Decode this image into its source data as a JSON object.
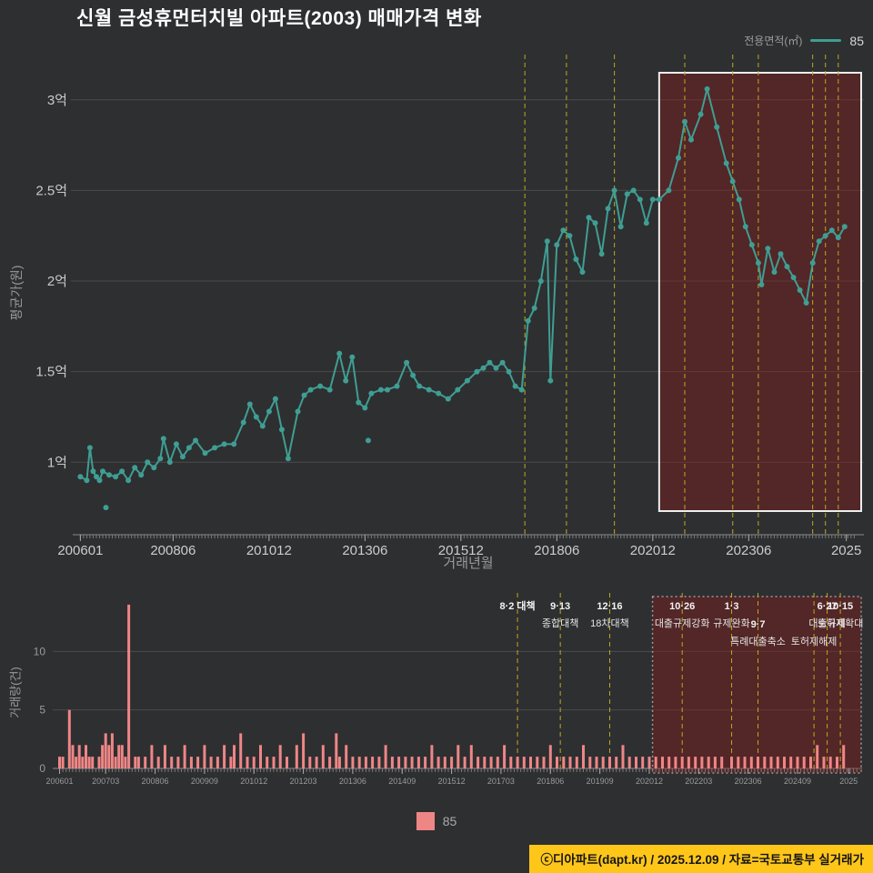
{
  "header": {
    "title": "신월 금성휴먼터치빌 아파트(2003) 매매가격 변화"
  },
  "legend_top": {
    "label": "전용면적(㎡)",
    "series": "85"
  },
  "legend_bottom": {
    "series": "85"
  },
  "footer": {
    "text": "ⓒ디아파트(dapt.kr) / 2025.12.09 / 자료=국토교통부 실거래가"
  },
  "axis_titles": {
    "top_y": "평균가(원)",
    "top_x": "거래년월",
    "bottom_y": "거래량(건)"
  },
  "colors": {
    "line": "#3f9e93",
    "bar": "#ef8686",
    "dashed": "#bfa91c",
    "grid": "#4b4b4b",
    "bg": "#2e2f31",
    "highlight_fill": "rgba(140,25,25,0.40)",
    "highlight_stroke_top": "#ededed",
    "highlight_stroke_bottom": "#9a9a9a"
  },
  "annotations": [
    {
      "date": "8·2 대책",
      "label": "",
      "ym": "201708",
      "row": 0
    },
    {
      "date": "9·13",
      "label": "종합대책",
      "ym": "201809",
      "row": 0
    },
    {
      "date": "12·16",
      "label": "18차대책",
      "ym": "201912",
      "row": 0
    },
    {
      "date": "10·26",
      "label": "대출규제강화",
      "ym": "202110",
      "row": 0
    },
    {
      "date": "1·3",
      "label": "규제완화",
      "ym": "202301",
      "row": 0
    },
    {
      "date": "9·7",
      "label": "특례대출축소",
      "ym": "202309",
      "row": 1
    },
    {
      "date": "",
      "label": "토허제해제",
      "ym": "202502",
      "row": 1
    },
    {
      "date": "6·27",
      "label": "대출규제",
      "ym": "202506",
      "row": 0
    },
    {
      "date": "10·15",
      "label": "토허제확대",
      "ym": "202510",
      "row": 0
    }
  ],
  "chart_data": [
    {
      "type": "line",
      "name": "price-trend",
      "title": "신월 금성휴먼터치빌 아파트(2003) 매매가격 변화",
      "xlabel": "거래년월",
      "ylabel": "평균가(원)",
      "ylim": [
        0.6,
        3.25
      ],
      "grid": true,
      "legend_position": "top-right",
      "yticks": [
        {
          "v": 1.0,
          "label": "1억"
        },
        {
          "v": 1.5,
          "label": "1.5억"
        },
        {
          "v": 2.0,
          "label": "2억"
        },
        {
          "v": 2.5,
          "label": "2.5억"
        },
        {
          "v": 3.0,
          "label": "3억"
        }
      ],
      "xticks": [
        "200601",
        "200806",
        "201012",
        "201306",
        "201512",
        "201806",
        "202012",
        "202306",
        "2025"
      ],
      "highlight_ym": [
        "202102",
        "202601"
      ],
      "series": [
        {
          "name": "85",
          "color": "#3f9e93",
          "unit": "억원",
          "points": [
            [
              "200601",
              0.92
            ],
            [
              "200603",
              0.9
            ],
            [
              "200604",
              1.08
            ],
            [
              "200605",
              0.95
            ],
            [
              "200606",
              0.92
            ],
            [
              "200607",
              0.9
            ],
            [
              "200608",
              0.95
            ],
            [
              "200610",
              0.93
            ],
            [
              "200612",
              0.92
            ],
            [
              "200702",
              0.95
            ],
            [
              "200704",
              0.9
            ],
            [
              "200706",
              0.97
            ],
            [
              "200708",
              0.93
            ],
            [
              "200710",
              1.0
            ],
            [
              "200712",
              0.97
            ],
            [
              "200802",
              1.02
            ],
            [
              "200803",
              1.13
            ],
            [
              "200805",
              1.0
            ],
            [
              "200807",
              1.1
            ],
            [
              "200809",
              1.03
            ],
            [
              "200811",
              1.08
            ],
            [
              "200901",
              1.12
            ],
            [
              "200904",
              1.05
            ],
            [
              "200907",
              1.08
            ],
            [
              "200910",
              1.1
            ],
            [
              "201001",
              1.1
            ],
            [
              "201004",
              1.22
            ],
            [
              "201006",
              1.32
            ],
            [
              "201008",
              1.25
            ],
            [
              "201010",
              1.2
            ],
            [
              "201012",
              1.28
            ],
            [
              "201102",
              1.35
            ],
            [
              "201104",
              1.18
            ],
            [
              "201106",
              1.02
            ],
            [
              "201109",
              1.28
            ],
            [
              "201111",
              1.37
            ],
            [
              "201201",
              1.4
            ],
            [
              "201204",
              1.42
            ],
            [
              "201207",
              1.4
            ],
            [
              "201210",
              1.6
            ],
            [
              "201212",
              1.45
            ],
            [
              "201302",
              1.58
            ],
            [
              "201304",
              1.33
            ],
            [
              "201306",
              1.3
            ],
            [
              "201308",
              1.38
            ],
            [
              "201311",
              1.4
            ],
            [
              "201401",
              1.4
            ],
            [
              "201404",
              1.42
            ],
            [
              "201407",
              1.55
            ],
            [
              "201409",
              1.48
            ],
            [
              "201411",
              1.42
            ],
            [
              "201502",
              1.4
            ],
            [
              "201505",
              1.38
            ],
            [
              "201508",
              1.35
            ],
            [
              "201511",
              1.4
            ],
            [
              "201602",
              1.45
            ],
            [
              "201605",
              1.5
            ],
            [
              "201607",
              1.52
            ],
            [
              "201609",
              1.55
            ],
            [
              "201611",
              1.52
            ],
            [
              "201701",
              1.55
            ],
            [
              "201703",
              1.5
            ],
            [
              "201705",
              1.42
            ],
            [
              "201707",
              1.4
            ],
            [
              "201709",
              1.78
            ],
            [
              "201711",
              1.85
            ],
            [
              "201801",
              2.0
            ],
            [
              "201803",
              2.22
            ],
            [
              "201804",
              1.45
            ],
            [
              "201806",
              2.2
            ],
            [
              "201808",
              2.28
            ],
            [
              "201810",
              2.25
            ],
            [
              "201812",
              2.12
            ],
            [
              "201902",
              2.05
            ],
            [
              "201904",
              2.35
            ],
            [
              "201906",
              2.32
            ],
            [
              "201908",
              2.15
            ],
            [
              "201910",
              2.4
            ],
            [
              "201912",
              2.5
            ],
            [
              "202002",
              2.3
            ],
            [
              "202004",
              2.48
            ],
            [
              "202006",
              2.5
            ],
            [
              "202008",
              2.45
            ],
            [
              "202010",
              2.32
            ],
            [
              "202012",
              2.45
            ],
            [
              "202102",
              2.45
            ],
            [
              "202105",
              2.5
            ],
            [
              "202108",
              2.68
            ],
            [
              "202110",
              2.88
            ],
            [
              "202112",
              2.78
            ],
            [
              "202203",
              2.92
            ],
            [
              "202205",
              3.06
            ],
            [
              "202208",
              2.85
            ],
            [
              "202211",
              2.65
            ],
            [
              "202301",
              2.55
            ],
            [
              "202303",
              2.45
            ],
            [
              "202305",
              2.3
            ],
            [
              "202307",
              2.2
            ],
            [
              "202309",
              2.1
            ],
            [
              "202310",
              1.98
            ],
            [
              "202312",
              2.18
            ],
            [
              "202402",
              2.05
            ],
            [
              "202404",
              2.15
            ],
            [
              "202406",
              2.08
            ],
            [
              "202408",
              2.02
            ],
            [
              "202410",
              1.95
            ],
            [
              "202412",
              1.88
            ],
            [
              "202502",
              2.1
            ],
            [
              "202504",
              2.22
            ],
            [
              "202506",
              2.25
            ],
            [
              "202508",
              2.28
            ],
            [
              "202510",
              2.24
            ],
            [
              "202512",
              2.3
            ]
          ]
        }
      ],
      "outliers": [
        [
          "200609",
          0.75
        ],
        [
          "201307",
          1.12
        ]
      ]
    },
    {
      "type": "bar",
      "name": "trade-volume",
      "ylabel": "거래량(건)",
      "ylim": [
        0,
        15
      ],
      "grid": true,
      "color": "#ef8686",
      "yticks": [
        0,
        5,
        10
      ],
      "xticks": [
        "200601",
        "200703",
        "200806",
        "200909",
        "201012",
        "201203",
        "201306",
        "201409",
        "201512",
        "201703",
        "201806",
        "201909",
        "202012",
        "202203",
        "202306",
        "202409",
        "2025"
      ],
      "highlight_ym": [
        "202101",
        "202601"
      ],
      "bars": [
        [
          "200601",
          1
        ],
        [
          "200602",
          1
        ],
        [
          "200604",
          5
        ],
        [
          "200605",
          2
        ],
        [
          "200606",
          1
        ],
        [
          "200607",
          2
        ],
        [
          "200608",
          1
        ],
        [
          "200609",
          2
        ],
        [
          "200610",
          1
        ],
        [
          "200611",
          1
        ],
        [
          "200701",
          1
        ],
        [
          "200702",
          2
        ],
        [
          "200703",
          3
        ],
        [
          "200704",
          2
        ],
        [
          "200705",
          3
        ],
        [
          "200706",
          1
        ],
        [
          "200707",
          2
        ],
        [
          "200708",
          2
        ],
        [
          "200709",
          1
        ],
        [
          "200710",
          14
        ],
        [
          "200712",
          1
        ],
        [
          "200801",
          1
        ],
        [
          "200803",
          1
        ],
        [
          "200805",
          2
        ],
        [
          "200807",
          1
        ],
        [
          "200809",
          2
        ],
        [
          "200811",
          1
        ],
        [
          "200901",
          1
        ],
        [
          "200903",
          2
        ],
        [
          "200905",
          1
        ],
        [
          "200907",
          1
        ],
        [
          "200909",
          2
        ],
        [
          "200911",
          1
        ],
        [
          "201001",
          1
        ],
        [
          "201003",
          2
        ],
        [
          "201005",
          1
        ],
        [
          "201006",
          2
        ],
        [
          "201008",
          3
        ],
        [
          "201010",
          1
        ],
        [
          "201012",
          1
        ],
        [
          "201102",
          2
        ],
        [
          "201104",
          1
        ],
        [
          "201106",
          1
        ],
        [
          "201108",
          2
        ],
        [
          "201110",
          1
        ],
        [
          "201201",
          2
        ],
        [
          "201203",
          3
        ],
        [
          "201205",
          1
        ],
        [
          "201207",
          1
        ],
        [
          "201209",
          2
        ],
        [
          "201211",
          1
        ],
        [
          "201301",
          3
        ],
        [
          "201302",
          1
        ],
        [
          "201304",
          2
        ],
        [
          "201306",
          1
        ],
        [
          "201308",
          1
        ],
        [
          "201310",
          1
        ],
        [
          "201312",
          1
        ],
        [
          "201402",
          1
        ],
        [
          "201404",
          2
        ],
        [
          "201406",
          1
        ],
        [
          "201408",
          1
        ],
        [
          "201410",
          1
        ],
        [
          "201412",
          1
        ],
        [
          "201502",
          1
        ],
        [
          "201504",
          1
        ],
        [
          "201506",
          2
        ],
        [
          "201508",
          1
        ],
        [
          "201510",
          1
        ],
        [
          "201512",
          1
        ],
        [
          "201602",
          2
        ],
        [
          "201604",
          1
        ],
        [
          "201606",
          2
        ],
        [
          "201608",
          1
        ],
        [
          "201610",
          1
        ],
        [
          "201612",
          1
        ],
        [
          "201702",
          1
        ],
        [
          "201704",
          2
        ],
        [
          "201706",
          1
        ],
        [
          "201708",
          1
        ],
        [
          "201710",
          1
        ],
        [
          "201712",
          1
        ],
        [
          "201802",
          1
        ],
        [
          "201804",
          1
        ],
        [
          "201806",
          2
        ],
        [
          "201808",
          1
        ],
        [
          "201810",
          1
        ],
        [
          "201812",
          1
        ],
        [
          "201902",
          1
        ],
        [
          "201904",
          2
        ],
        [
          "201906",
          1
        ],
        [
          "201908",
          1
        ],
        [
          "201910",
          1
        ],
        [
          "201912",
          1
        ],
        [
          "202002",
          1
        ],
        [
          "202004",
          2
        ],
        [
          "202006",
          1
        ],
        [
          "202008",
          1
        ],
        [
          "202010",
          1
        ],
        [
          "202012",
          1
        ],
        [
          "202102",
          1
        ],
        [
          "202104",
          1
        ],
        [
          "202106",
          1
        ],
        [
          "202108",
          1
        ],
        [
          "202110",
          1
        ],
        [
          "202112",
          1
        ],
        [
          "202202",
          1
        ],
        [
          "202204",
          1
        ],
        [
          "202206",
          1
        ],
        [
          "202208",
          1
        ],
        [
          "202210",
          1
        ],
        [
          "202301",
          1
        ],
        [
          "202303",
          1
        ],
        [
          "202305",
          1
        ],
        [
          "202307",
          1
        ],
        [
          "202309",
          1
        ],
        [
          "202311",
          1
        ],
        [
          "202401",
          1
        ],
        [
          "202403",
          1
        ],
        [
          "202405",
          1
        ],
        [
          "202407",
          1
        ],
        [
          "202409",
          1
        ],
        [
          "202411",
          1
        ],
        [
          "202501",
          1
        ],
        [
          "202503",
          2
        ],
        [
          "202505",
          1
        ],
        [
          "202507",
          1
        ],
        [
          "202509",
          1
        ],
        [
          "202511",
          2
        ]
      ]
    }
  ]
}
